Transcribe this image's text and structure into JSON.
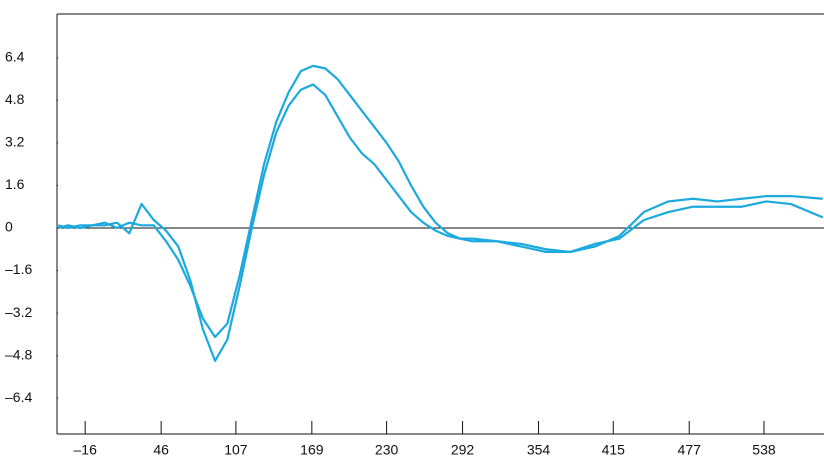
{
  "chart_data": {
    "type": "line",
    "x": [
      -38,
      -30,
      -20,
      -10,
      0,
      10,
      20,
      30,
      40,
      50,
      60,
      70,
      80,
      90,
      100,
      110,
      120,
      130,
      140,
      150,
      160,
      170,
      180,
      190,
      200,
      210,
      220,
      230,
      240,
      250,
      260,
      270,
      280,
      290,
      300,
      320,
      340,
      360,
      380,
      400,
      420,
      440,
      460,
      480,
      500,
      520,
      540,
      560,
      586
    ],
    "series": [
      {
        "color": "#1ba9de",
        "values": [
          0.1,
          0,
          0.1,
          0.1,
          0.1,
          0.2,
          -0.2,
          0.9,
          0.3,
          -0.1,
          -0.7,
          -2.0,
          -3.8,
          -5.0,
          -4.2,
          -2.2,
          0,
          2.0,
          3.6,
          4.6,
          5.2,
          5.4,
          5.0,
          4.2,
          3.4,
          2.8,
          2.4,
          1.8,
          1.2,
          0.6,
          0.2,
          -0.1,
          -0.3,
          -0.4,
          -0.4,
          -0.5,
          -0.7,
          -0.9,
          -0.9,
          -0.6,
          -0.4,
          0.3,
          0.6,
          0.8,
          0.8,
          0.8,
          1.0,
          0.9,
          0.4
        ]
      },
      {
        "color": "#1ba9de",
        "values": [
          0.0,
          0.1,
          0,
          0.1,
          0.2,
          0.0,
          0.2,
          0.1,
          0.1,
          -0.5,
          -1.2,
          -2.2,
          -3.4,
          -4.1,
          -3.6,
          -1.8,
          0.3,
          2.4,
          4.0,
          5.1,
          5.9,
          6.1,
          6.0,
          5.6,
          5.0,
          4.4,
          3.8,
          3.2,
          2.5,
          1.6,
          0.8,
          0.2,
          -0.2,
          -0.4,
          -0.5,
          -0.5,
          -0.6,
          -0.8,
          -0.9,
          -0.7,
          -0.3,
          0.6,
          1.0,
          1.1,
          1.0,
          1.1,
          1.2,
          1.2,
          1.1
        ]
      }
    ],
    "xlim": [
      -39,
      587
    ],
    "xticks": [
      {
        "value": -16,
        "label": "–16"
      },
      46,
      107,
      169,
      230,
      292,
      354,
      415,
      477,
      538
    ],
    "ylim": [
      -7.75,
      8.05
    ],
    "yticks": [
      {
        "value": -6.4,
        "label": "–6.4"
      },
      {
        "value": -4.8,
        "label": "–4.8"
      },
      {
        "value": -3.2,
        "label": "–3.2"
      },
      {
        "value": -1.6,
        "label": "–1.6"
      },
      0,
      1.6,
      3.2,
      4.8,
      6.4
    ]
  }
}
